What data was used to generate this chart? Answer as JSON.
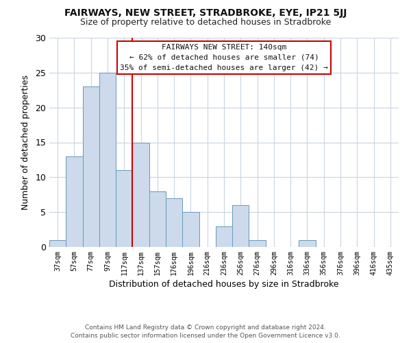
{
  "title": "FAIRWAYS, NEW STREET, STRADBROKE, EYE, IP21 5JJ",
  "subtitle": "Size of property relative to detached houses in Stradbroke",
  "xlabel": "Distribution of detached houses by size in Stradbroke",
  "ylabel": "Number of detached properties",
  "bar_color": "#ccdaeb",
  "bar_edge_color": "#6699bb",
  "categories": [
    "37sqm",
    "57sqm",
    "77sqm",
    "97sqm",
    "117sqm",
    "137sqm",
    "157sqm",
    "176sqm",
    "196sqm",
    "216sqm",
    "236sqm",
    "256sqm",
    "276sqm",
    "296sqm",
    "316sqm",
    "336sqm",
    "356sqm",
    "376sqm",
    "396sqm",
    "416sqm",
    "435sqm"
  ],
  "values": [
    1,
    13,
    23,
    25,
    11,
    15,
    8,
    7,
    5,
    0,
    3,
    6,
    1,
    0,
    0,
    1,
    0,
    0,
    0,
    0,
    0
  ],
  "vline_color": "#cc0000",
  "vline_index": 5,
  "ylim": [
    0,
    30
  ],
  "yticks": [
    0,
    5,
    10,
    15,
    20,
    25,
    30
  ],
  "annotation_title": "FAIRWAYS NEW STREET: 140sqm",
  "annotation_line1": "← 62% of detached houses are smaller (74)",
  "annotation_line2": "35% of semi-detached houses are larger (42) →",
  "footer_line1": "Contains HM Land Registry data © Crown copyright and database right 2024.",
  "footer_line2": "Contains public sector information licensed under the Open Government Licence v3.0.",
  "background_color": "#ffffff",
  "grid_color": "#c8d4e0"
}
